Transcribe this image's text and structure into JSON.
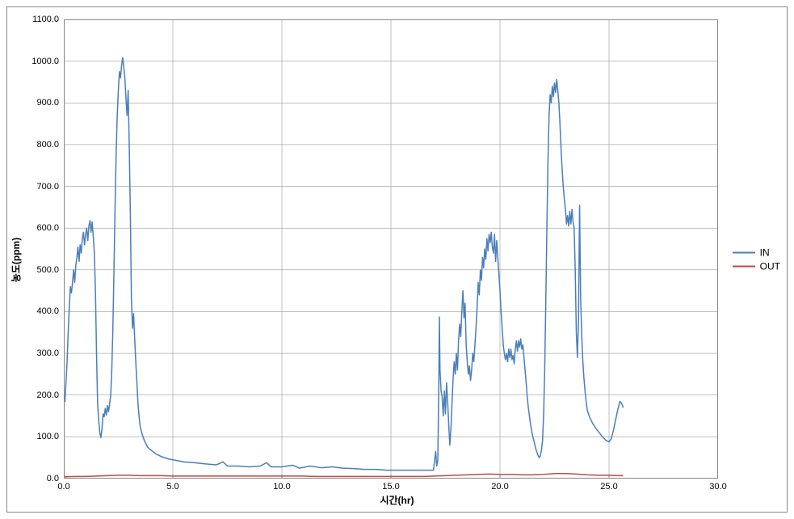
{
  "chart": {
    "type": "line",
    "background_color": "#ffffff",
    "plot_border_color": "#868686",
    "grid_color": "#868686",
    "grid_width": 0.5,
    "xlabel": "시간(hr)",
    "ylabel": "농도(ppm)",
    "label_fontsize": 12,
    "label_fontweight": "bold",
    "tick_fontsize": 11,
    "xlim": [
      0.0,
      30.0
    ],
    "ylim": [
      0.0,
      1100.0
    ],
    "xtick_step": 5.0,
    "ytick_step": 100.0,
    "xtick_decimals": 1,
    "ytick_decimals": 1,
    "legend": {
      "position": "right-middle",
      "items": [
        {
          "label": "IN",
          "color": "#4a7ebb"
        },
        {
          "label": "OUT",
          "color": "#be4b48"
        }
      ]
    },
    "line_width": 1.5,
    "series": [
      {
        "name": "IN",
        "color": "#4a7ebb",
        "data": [
          [
            0.0,
            200
          ],
          [
            0.05,
            185
          ],
          [
            0.1,
            230
          ],
          [
            0.15,
            280
          ],
          [
            0.2,
            350
          ],
          [
            0.25,
            410
          ],
          [
            0.3,
            460
          ],
          [
            0.35,
            445
          ],
          [
            0.4,
            470
          ],
          [
            0.45,
            500
          ],
          [
            0.5,
            470
          ],
          [
            0.55,
            510
          ],
          [
            0.6,
            530
          ],
          [
            0.65,
            555
          ],
          [
            0.7,
            520
          ],
          [
            0.75,
            560
          ],
          [
            0.8,
            540
          ],
          [
            0.85,
            575
          ],
          [
            0.9,
            590
          ],
          [
            0.95,
            560
          ],
          [
            1.0,
            585
          ],
          [
            1.05,
            600
          ],
          [
            1.1,
            570
          ],
          [
            1.15,
            605
          ],
          [
            1.2,
            618
          ],
          [
            1.25,
            590
          ],
          [
            1.3,
            615
          ],
          [
            1.35,
            580
          ],
          [
            1.4,
            540
          ],
          [
            1.45,
            450
          ],
          [
            1.5,
            300
          ],
          [
            1.55,
            180
          ],
          [
            1.6,
            140
          ],
          [
            1.65,
            110
          ],
          [
            1.7,
            98
          ],
          [
            1.75,
            120
          ],
          [
            1.8,
            155
          ],
          [
            1.85,
            148
          ],
          [
            1.9,
            168
          ],
          [
            1.95,
            152
          ],
          [
            2.0,
            175
          ],
          [
            2.05,
            160
          ],
          [
            2.1,
            178
          ],
          [
            2.15,
            200
          ],
          [
            2.2,
            260
          ],
          [
            2.25,
            360
          ],
          [
            2.3,
            500
          ],
          [
            2.35,
            650
          ],
          [
            2.4,
            780
          ],
          [
            2.45,
            870
          ],
          [
            2.5,
            930
          ],
          [
            2.55,
            975
          ],
          [
            2.6,
            960
          ],
          [
            2.65,
            990
          ],
          [
            2.7,
            1008
          ],
          [
            2.75,
            985
          ],
          [
            2.8,
            960
          ],
          [
            2.85,
            910
          ],
          [
            2.9,
            870
          ],
          [
            2.95,
            930
          ],
          [
            3.0,
            800
          ],
          [
            3.05,
            640
          ],
          [
            3.1,
            430
          ],
          [
            3.15,
            360
          ],
          [
            3.2,
            395
          ],
          [
            3.25,
            335
          ],
          [
            3.3,
            280
          ],
          [
            3.35,
            230
          ],
          [
            3.4,
            180
          ],
          [
            3.45,
            150
          ],
          [
            3.5,
            125
          ],
          [
            3.6,
            105
          ],
          [
            3.7,
            90
          ],
          [
            3.85,
            75
          ],
          [
            4.0,
            68
          ],
          [
            4.2,
            60
          ],
          [
            4.5,
            52
          ],
          [
            4.8,
            47
          ],
          [
            5.1,
            44
          ],
          [
            5.5,
            40
          ],
          [
            6.0,
            38
          ],
          [
            6.5,
            35
          ],
          [
            7.0,
            33
          ],
          [
            7.3,
            40
          ],
          [
            7.5,
            30
          ],
          [
            8.0,
            30
          ],
          [
            8.5,
            28
          ],
          [
            9.0,
            30
          ],
          [
            9.3,
            38
          ],
          [
            9.5,
            28
          ],
          [
            10.0,
            28
          ],
          [
            10.5,
            32
          ],
          [
            10.8,
            25
          ],
          [
            11.3,
            30
          ],
          [
            11.8,
            26
          ],
          [
            12.3,
            28
          ],
          [
            12.8,
            25
          ],
          [
            13.3,
            24
          ],
          [
            13.8,
            22
          ],
          [
            14.3,
            22
          ],
          [
            14.8,
            20
          ],
          [
            15.3,
            20
          ],
          [
            15.8,
            20
          ],
          [
            16.3,
            20
          ],
          [
            16.7,
            20
          ],
          [
            16.95,
            20
          ],
          [
            17.05,
            65
          ],
          [
            17.1,
            30
          ],
          [
            17.15,
            45
          ],
          [
            17.2,
            250
          ],
          [
            17.22,
            387
          ],
          [
            17.25,
            260
          ],
          [
            17.3,
            210
          ],
          [
            17.35,
            195
          ],
          [
            17.4,
            150
          ],
          [
            17.45,
            210
          ],
          [
            17.5,
            155
          ],
          [
            17.55,
            230
          ],
          [
            17.6,
            185
          ],
          [
            17.65,
            128
          ],
          [
            17.7,
            80
          ],
          [
            17.75,
            120
          ],
          [
            17.8,
            180
          ],
          [
            17.85,
            240
          ],
          [
            17.9,
            280
          ],
          [
            17.95,
            250
          ],
          [
            18.0,
            300
          ],
          [
            18.05,
            260
          ],
          [
            18.1,
            330
          ],
          [
            18.15,
            370
          ],
          [
            18.2,
            340
          ],
          [
            18.25,
            400
          ],
          [
            18.3,
            450
          ],
          [
            18.35,
            385
          ],
          [
            18.4,
            420
          ],
          [
            18.45,
            320
          ],
          [
            18.5,
            280
          ],
          [
            18.55,
            250
          ],
          [
            18.6,
            270
          ],
          [
            18.65,
            235
          ],
          [
            18.7,
            260
          ],
          [
            18.75,
            300
          ],
          [
            18.8,
            280
          ],
          [
            18.85,
            320
          ],
          [
            18.9,
            360
          ],
          [
            18.95,
            410
          ],
          [
            19.0,
            470
          ],
          [
            19.05,
            440
          ],
          [
            19.1,
            500
          ],
          [
            19.15,
            475
          ],
          [
            19.2,
            530
          ],
          [
            19.25,
            505
          ],
          [
            19.3,
            550
          ],
          [
            19.35,
            525
          ],
          [
            19.4,
            575
          ],
          [
            19.45,
            545
          ],
          [
            19.5,
            585
          ],
          [
            19.55,
            565
          ],
          [
            19.6,
            590
          ],
          [
            19.65,
            555
          ],
          [
            19.7,
            540
          ],
          [
            19.75,
            585
          ],
          [
            19.8,
            520
          ],
          [
            19.85,
            570
          ],
          [
            19.9,
            530
          ],
          [
            19.95,
            490
          ],
          [
            20.0,
            450
          ],
          [
            20.05,
            400
          ],
          [
            20.1,
            360
          ],
          [
            20.15,
            320
          ],
          [
            20.2,
            300
          ],
          [
            20.25,
            285
          ],
          [
            20.3,
            300
          ],
          [
            20.35,
            280
          ],
          [
            20.4,
            310
          ],
          [
            20.45,
            290
          ],
          [
            20.5,
            310
          ],
          [
            20.55,
            285
          ],
          [
            20.6,
            295
          ],
          [
            20.65,
            275
          ],
          [
            20.7,
            310
          ],
          [
            20.75,
            330
          ],
          [
            20.8,
            305
          ],
          [
            20.85,
            330
          ],
          [
            20.9,
            315
          ],
          [
            20.95,
            335
          ],
          [
            21.0,
            310
          ],
          [
            21.05,
            320
          ],
          [
            21.1,
            290
          ],
          [
            21.15,
            260
          ],
          [
            21.2,
            230
          ],
          [
            21.25,
            195
          ],
          [
            21.3,
            170
          ],
          [
            21.35,
            150
          ],
          [
            21.4,
            130
          ],
          [
            21.45,
            115
          ],
          [
            21.5,
            102
          ],
          [
            21.55,
            92
          ],
          [
            21.6,
            80
          ],
          [
            21.65,
            70
          ],
          [
            21.7,
            62
          ],
          [
            21.75,
            55
          ],
          [
            21.8,
            50
          ],
          [
            21.85,
            55
          ],
          [
            21.9,
            68
          ],
          [
            21.95,
            90
          ],
          [
            22.0,
            150
          ],
          [
            22.05,
            260
          ],
          [
            22.1,
            420
          ],
          [
            22.15,
            600
          ],
          [
            22.2,
            760
          ],
          [
            22.25,
            870
          ],
          [
            22.3,
            920
          ],
          [
            22.35,
            900
          ],
          [
            22.4,
            940
          ],
          [
            22.45,
            915
          ],
          [
            22.5,
            948
          ],
          [
            22.55,
            925
          ],
          [
            22.6,
            956
          ],
          [
            22.65,
            930
          ],
          [
            22.7,
            900
          ],
          [
            22.75,
            850
          ],
          [
            22.8,
            790
          ],
          [
            22.85,
            740
          ],
          [
            22.9,
            700
          ],
          [
            22.95,
            670
          ],
          [
            23.0,
            645
          ],
          [
            23.05,
            610
          ],
          [
            23.1,
            630
          ],
          [
            23.15,
            605
          ],
          [
            23.2,
            640
          ],
          [
            23.25,
            610
          ],
          [
            23.3,
            645
          ],
          [
            23.35,
            615
          ],
          [
            23.4,
            600
          ],
          [
            23.45,
            500
          ],
          [
            23.5,
            350
          ],
          [
            23.55,
            290
          ],
          [
            23.6,
            380
          ],
          [
            23.65,
            655
          ],
          [
            23.7,
            430
          ],
          [
            23.75,
            340
          ],
          [
            23.8,
            280
          ],
          [
            23.85,
            240
          ],
          [
            23.9,
            210
          ],
          [
            23.95,
            185
          ],
          [
            24.0,
            165
          ],
          [
            24.1,
            148
          ],
          [
            24.25,
            132
          ],
          [
            24.4,
            120
          ],
          [
            24.55,
            110
          ],
          [
            24.7,
            100
          ],
          [
            24.85,
            92
          ],
          [
            25.0,
            88
          ],
          [
            25.1,
            95
          ],
          [
            25.2,
            115
          ],
          [
            25.3,
            140
          ],
          [
            25.4,
            165
          ],
          [
            25.5,
            185
          ],
          [
            25.58,
            180
          ],
          [
            25.65,
            170
          ]
        ]
      },
      {
        "name": "OUT",
        "color": "#be4b48",
        "data": [
          [
            0.0,
            4
          ],
          [
            0.5,
            5
          ],
          [
            1.0,
            5
          ],
          [
            1.5,
            6
          ],
          [
            2.0,
            7
          ],
          [
            2.5,
            8
          ],
          [
            3.0,
            8
          ],
          [
            3.5,
            7
          ],
          [
            4.0,
            7
          ],
          [
            4.5,
            7
          ],
          [
            5.0,
            6
          ],
          [
            5.5,
            6
          ],
          [
            6.0,
            6
          ],
          [
            6.5,
            6
          ],
          [
            7.0,
            6
          ],
          [
            7.5,
            6
          ],
          [
            8.0,
            6
          ],
          [
            8.5,
            6
          ],
          [
            9.0,
            6
          ],
          [
            9.5,
            6
          ],
          [
            10.0,
            6
          ],
          [
            10.5,
            6
          ],
          [
            11.0,
            6
          ],
          [
            11.5,
            5
          ],
          [
            12.0,
            5
          ],
          [
            12.5,
            5
          ],
          [
            13.0,
            5
          ],
          [
            13.5,
            5
          ],
          [
            14.0,
            5
          ],
          [
            14.5,
            5
          ],
          [
            15.0,
            5
          ],
          [
            15.5,
            5
          ],
          [
            16.0,
            5
          ],
          [
            16.5,
            5
          ],
          [
            17.0,
            6
          ],
          [
            17.5,
            7
          ],
          [
            18.0,
            8
          ],
          [
            18.5,
            9
          ],
          [
            19.0,
            10
          ],
          [
            19.5,
            11
          ],
          [
            20.0,
            10
          ],
          [
            20.5,
            10
          ],
          [
            21.0,
            9
          ],
          [
            21.5,
            9
          ],
          [
            22.0,
            10
          ],
          [
            22.5,
            12
          ],
          [
            23.0,
            12
          ],
          [
            23.5,
            11
          ],
          [
            24.0,
            9
          ],
          [
            24.5,
            8
          ],
          [
            25.0,
            8
          ],
          [
            25.5,
            7
          ],
          [
            25.65,
            7
          ]
        ]
      }
    ]
  }
}
